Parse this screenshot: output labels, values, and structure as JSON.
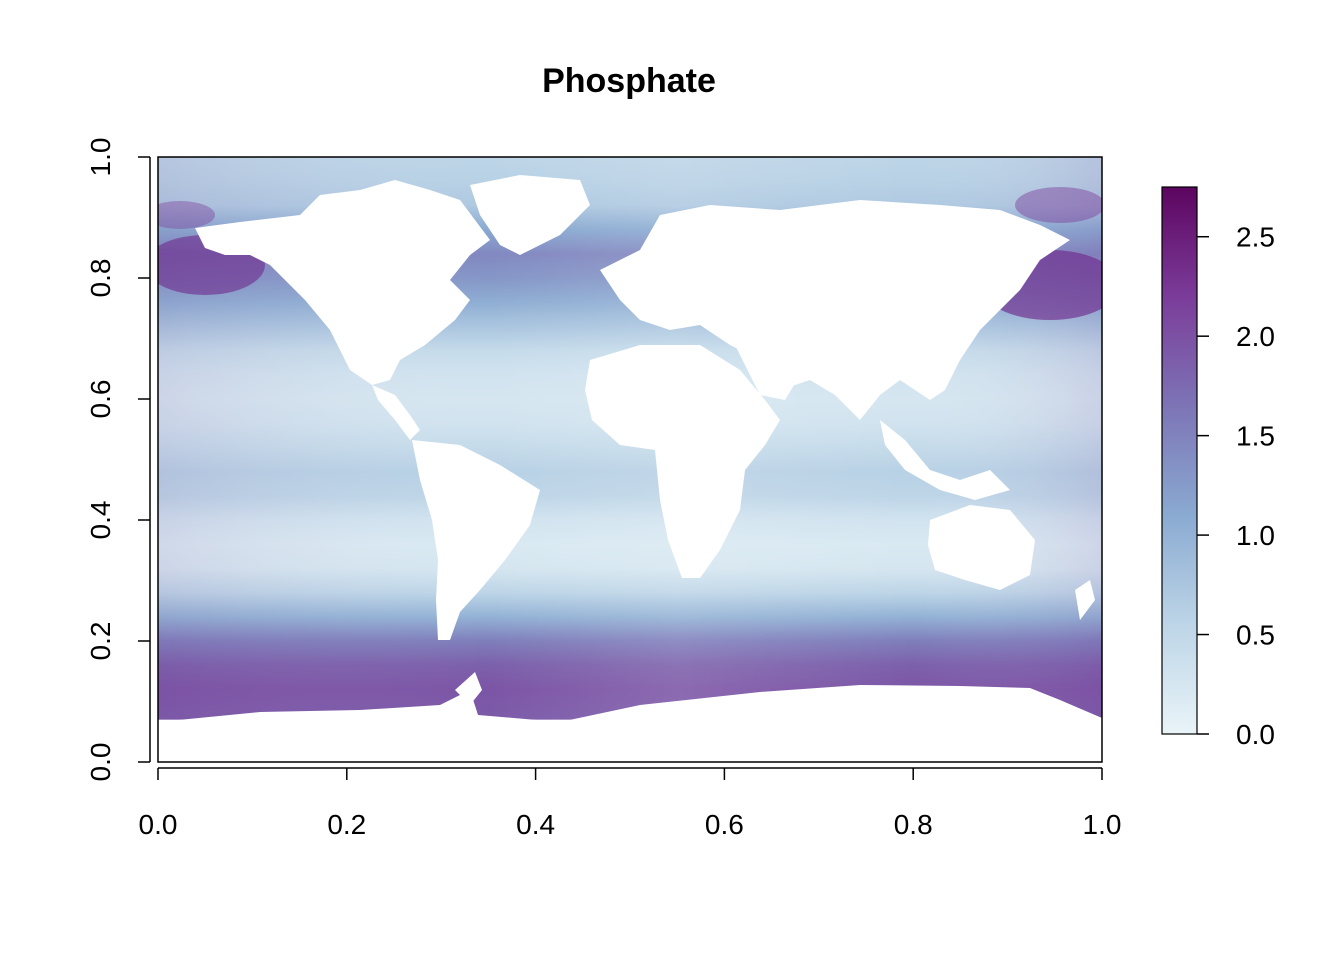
{
  "chart_data": {
    "type": "heatmap",
    "title": "Phosphate",
    "xlabel": "",
    "ylabel": "",
    "xlim": [
      0.0,
      1.0
    ],
    "ylim": [
      0.0,
      1.0
    ],
    "x_ticks": [
      "0.0",
      "0.2",
      "0.4",
      "0.6",
      "0.8",
      "1.0"
    ],
    "y_ticks": [
      "0.0",
      "0.2",
      "0.4",
      "0.6",
      "0.8",
      "1.0"
    ],
    "grid": false,
    "colorbar": {
      "range": [
        0.0,
        2.75
      ],
      "ticks": [
        "0.0",
        "0.5",
        "1.0",
        "1.5",
        "2.0",
        "2.5"
      ],
      "colors": [
        "#e9f4f8",
        "#bdd5e7",
        "#8aaad1",
        "#7d74b6",
        "#7b3c99",
        "#5c0560"
      ]
    },
    "data_extent_y": [
      0.07,
      1.0
    ],
    "latitudinal_profile": {
      "y": [
        0.07,
        0.12,
        0.16,
        0.2,
        0.24,
        0.28,
        0.32,
        0.36,
        0.4,
        0.44,
        0.48,
        0.52,
        0.56,
        0.6,
        0.64,
        0.68,
        0.72,
        0.76,
        0.8,
        0.84,
        0.88,
        0.92,
        0.96,
        1.0
      ],
      "value": [
        1.9,
        1.95,
        1.85,
        1.55,
        1.0,
        0.55,
        0.25,
        0.2,
        0.3,
        0.55,
        0.6,
        0.45,
        0.3,
        0.25,
        0.3,
        0.45,
        0.75,
        1.05,
        1.3,
        1.45,
        1.1,
        0.7,
        0.6,
        0.55
      ]
    },
    "land_color": "#ffffff"
  }
}
